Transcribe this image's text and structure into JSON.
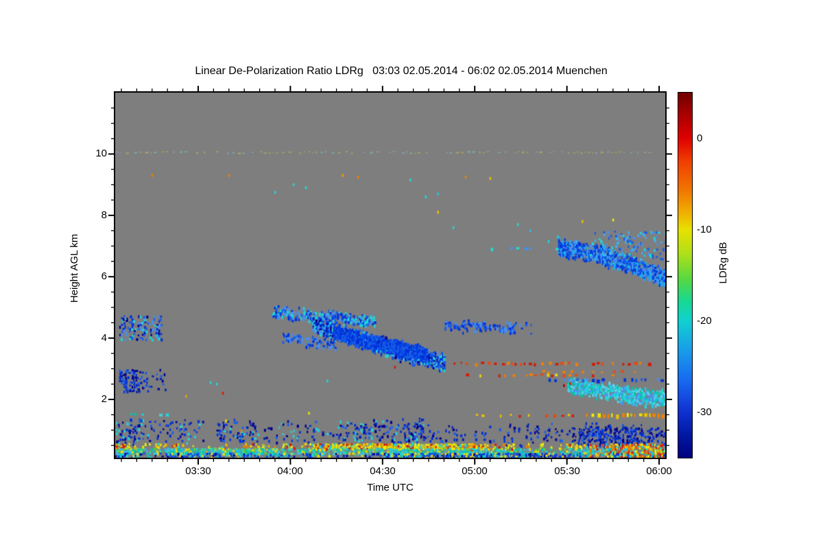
{
  "title": "Linear De-Polarization Ratio LDRg   03:03 02.05.2014 - 06:02 02.05.2014 Muenchen",
  "station": "Muenchen",
  "date": "02.05.2014",
  "time_start": "03:03",
  "time_end": "06:02",
  "chart_data": {
    "type": "heatmap",
    "title": "Linear De-Polarization Ratio LDRg   03:03 02.05.2014 - 06:02 02.05.2014 Muenchen",
    "xlabel": "Time UTC",
    "ylabel": "Height AGL km",
    "x_ticks": [
      "03:30",
      "04:00",
      "04:30",
      "05:00",
      "05:30",
      "06:00"
    ],
    "x_minor_step_min": 5,
    "x_range": [
      "03:03",
      "06:02"
    ],
    "y_ticks": [
      "10",
      "8",
      "6",
      "4",
      "2"
    ],
    "y_minor_step_km": 0.5,
    "y_range_km": [
      0.1,
      12.0
    ],
    "no_data_color": "#7e7e7e",
    "grid": false,
    "colorbar": {
      "label": "LDRg dB",
      "ticks": [
        "0",
        "-10",
        "-20",
        "-30"
      ],
      "range_db": [
        5,
        -35
      ],
      "colormap": "rainbow",
      "gradient": [
        [
          "#700000",
          0
        ],
        [
          "#a00000",
          5
        ],
        [
          "#e00000",
          12.5
        ],
        [
          "#f04000",
          19
        ],
        [
          "#f07800",
          27
        ],
        [
          "#f0b000",
          33
        ],
        [
          "#e8e000",
          37.5
        ],
        [
          "#b0e018",
          44
        ],
        [
          "#58d840",
          51
        ],
        [
          "#18d890",
          57
        ],
        [
          "#10d0d0",
          62.5
        ],
        [
          "#18a0e8",
          70
        ],
        [
          "#1868f0",
          79
        ],
        [
          "#1030d0",
          87.5
        ],
        [
          "#0018a0",
          94
        ],
        [
          "#000080",
          100
        ]
      ]
    },
    "features": [
      {
        "name": "cloud-left-4km",
        "kind": "region",
        "t": [
          "03:04",
          "03:18"
        ],
        "h": [
          3.95,
          4.75
        ],
        "density": 0.38,
        "palette": [
          "#0030d8",
          "#1a5ce8",
          "#000090",
          "#4890f0",
          "#20d8d8"
        ]
      },
      {
        "name": "cloud-left-3km",
        "kind": "region",
        "t": [
          "03:04",
          "03:19"
        ],
        "h": [
          2.3,
          3.0
        ],
        "density": 0.5,
        "palette": [
          "#0030d8",
          "#000090",
          "#0020b0",
          "#1a5ce8"
        ]
      },
      {
        "name": "cyan-dashes-1.5km-left",
        "kind": "dashes",
        "t": [
          "03:04",
          "03:21"
        ],
        "h": 1.52,
        "density": 0.3,
        "thickness_km": 0.08,
        "palette": [
          "#20d8d8",
          "#00c8a8",
          "#40d0e0"
        ]
      },
      {
        "name": "mid-cloud-upper-streak",
        "kind": "band",
        "path": [
          [
            "03:54",
            4.85
          ],
          [
            "04:12",
            4.72
          ],
          [
            "04:27",
            4.55
          ]
        ],
        "thickness_km": 0.2,
        "density": 0.55,
        "palette": [
          "#1a5ce8",
          "#0030d8",
          "#4890f0",
          "#20d8d8"
        ]
      },
      {
        "name": "mid-cloud-small-streak",
        "kind": "band",
        "path": [
          [
            "03:57",
            4.05
          ],
          [
            "04:15",
            3.78
          ]
        ],
        "thickness_km": 0.15,
        "density": 0.4,
        "palette": [
          "#1a5ce8",
          "#0030d8",
          "#4890f0"
        ]
      },
      {
        "name": "mid-cloud-main",
        "kind": "band",
        "path": [
          [
            "04:07",
            4.45
          ],
          [
            "04:20",
            4.05
          ],
          [
            "04:35",
            3.6
          ],
          [
            "04:50",
            3.25
          ]
        ],
        "thickness_km": 0.4,
        "density": 0.85,
        "palette": [
          "#0030d8",
          "#1a5ce8",
          "#0048e8",
          "#000090",
          "#4890f0",
          "#20d8d8"
        ]
      },
      {
        "name": "mid-cloud-core",
        "kind": "band",
        "path": [
          [
            "04:14",
            4.2
          ],
          [
            "04:28",
            3.85
          ],
          [
            "04:44",
            3.5
          ]
        ],
        "thickness_km": 0.3,
        "density": 0.9,
        "palette": [
          "#0030d8",
          "#0048e8",
          "#1a5ce8"
        ]
      },
      {
        "name": "streak-4.4km",
        "kind": "band",
        "path": [
          [
            "04:50",
            4.45
          ],
          [
            "05:02",
            4.38
          ],
          [
            "05:13",
            4.3
          ]
        ],
        "thickness_km": 0.16,
        "density": 0.45,
        "palette": [
          "#1a5ce8",
          "#0030d8",
          "#4890f0"
        ]
      },
      {
        "name": "blob-4.3km",
        "kind": "region",
        "t": [
          "05:09",
          "05:20"
        ],
        "h": [
          4.15,
          4.55
        ],
        "density": 0.55,
        "palette": [
          "#1a5ce8",
          "#0030d8",
          "#4890f0"
        ]
      },
      {
        "name": "right-cloud-band",
        "kind": "band",
        "path": [
          [
            "05:27",
            7.0
          ],
          [
            "05:40",
            6.75
          ],
          [
            "05:52",
            6.35
          ],
          [
            "06:02",
            5.95
          ]
        ],
        "thickness_km": 0.42,
        "density": 0.78,
        "palette": [
          "#1a5ce8",
          "#0030d8",
          "#4890f0",
          "#0048e8",
          "#20b0f0"
        ]
      },
      {
        "name": "right-cloud-halo",
        "kind": "region",
        "t": [
          "05:36",
          "06:02"
        ],
        "h": [
          6.6,
          7.5
        ],
        "density": 0.15,
        "palette": [
          "#20d8d8",
          "#4890f0",
          "#1a5ce8",
          "#40b0f0"
        ]
      },
      {
        "name": "cloud-trail-7km",
        "kind": "dashes",
        "t": [
          "05:03",
          "05:30"
        ],
        "h": 6.9,
        "density": 0.1,
        "thickness_km": 0.1,
        "palette": [
          "#20d8d8",
          "#4890f0"
        ]
      },
      {
        "name": "cyan-blob-right",
        "kind": "band",
        "path": [
          [
            "05:30",
            2.45
          ],
          [
            "05:42",
            2.3
          ],
          [
            "05:52",
            2.1
          ],
          [
            "06:02",
            2.05
          ]
        ],
        "thickness_km": 0.36,
        "density": 0.7,
        "palette": [
          "#20d8d8",
          "#30c0f0",
          "#4890f0",
          "#00c8a8",
          "#60d8f0",
          "#20d8d8"
        ]
      },
      {
        "name": "blue-dashes-2.6km",
        "kind": "dashes",
        "t": [
          "05:24",
          "06:02"
        ],
        "h": 2.62,
        "density": 0.4,
        "thickness_km": 0.1,
        "palette": [
          "#1a5ce8",
          "#0030d8",
          "#4890f0"
        ]
      },
      {
        "name": "red-dash-line-3.15km",
        "kind": "dashes",
        "t": [
          "04:52",
          "05:58"
        ],
        "h": 3.16,
        "density": 0.45,
        "thickness_km": 0.09,
        "palette": [
          "#d81800",
          "#e84810",
          "#f08000",
          "#d81800"
        ]
      },
      {
        "name": "orange-dash-line-2.8km",
        "kind": "dashes",
        "t": [
          "04:56",
          "05:45"
        ],
        "h": 2.78,
        "density": 0.22,
        "thickness_km": 0.08,
        "palette": [
          "#e84810",
          "#f08000",
          "#f0e000",
          "#d81800"
        ]
      },
      {
        "name": "orange-dots-2.9km",
        "kind": "dashes",
        "t": [
          "05:22",
          "05:52"
        ],
        "h": 2.9,
        "density": 0.18,
        "thickness_km": 0.07,
        "palette": [
          "#f08000",
          "#e84810"
        ]
      },
      {
        "name": "orange-dash-line-1.5km",
        "kind": "dashes",
        "t": [
          "04:57",
          "05:37"
        ],
        "h": 1.47,
        "density": 0.28,
        "thickness_km": 0.08,
        "palette": [
          "#e84810",
          "#f08000",
          "#d81800",
          "#f0c000"
        ]
      },
      {
        "name": "yellow-line-1.5km",
        "kind": "dashes",
        "t": [
          "05:38",
          "06:02"
        ],
        "h": 1.47,
        "density": 0.85,
        "thickness_km": 0.12,
        "palette": [
          "#f0f000",
          "#f0e000",
          "#f0c000",
          "#f08000"
        ]
      },
      {
        "name": "faint-line-10km",
        "kind": "dashes",
        "t": [
          "03:03",
          "06:02"
        ],
        "h": 10.05,
        "density": 0.45,
        "thickness_km": 0.05,
        "opacity": 0.5,
        "palette": [
          "#b0b058",
          "#80c0c0",
          "#c0c060"
        ]
      },
      {
        "name": "aerosol-band-left",
        "kind": "region",
        "t": [
          "03:03",
          "04:43"
        ],
        "h": [
          0.65,
          1.3
        ],
        "density": 0.4,
        "wobble": 0.12,
        "palette": [
          "#000090",
          "#0020b0",
          "#0030d8",
          "#0030d8",
          "#000090",
          "#1a5ce8",
          "#20d8d8"
        ]
      },
      {
        "name": "aerosol-band-mid",
        "kind": "region",
        "t": [
          "04:43",
          "05:33"
        ],
        "h": [
          0.6,
          1.15
        ],
        "density": 0.17,
        "wobble": 0.12,
        "palette": [
          "#000090",
          "#0020b0",
          "#0030d8",
          "#1a5ce8"
        ]
      },
      {
        "name": "aerosol-band-right",
        "kind": "region",
        "t": [
          "05:33",
          "06:02"
        ],
        "h": [
          0.55,
          1.15
        ],
        "density": 0.42,
        "wobble": 0.12,
        "palette": [
          "#000090",
          "#0020b0",
          "#0030d8",
          "#0030d8",
          "#1a5ce8"
        ]
      },
      {
        "name": "surface-yellow-band",
        "kind": "region",
        "t": [
          "03:03",
          "06:02"
        ],
        "h": [
          0.42,
          0.58
        ],
        "density": 0.75,
        "palette": [
          "#f0f000",
          "#f0e000",
          "#f0c000",
          "#b8e020",
          "#f08000",
          "#20d8d8",
          "#f0f000",
          "#d81800"
        ]
      },
      {
        "name": "surface-cyan-band",
        "kind": "region",
        "t": [
          "03:03",
          "06:02"
        ],
        "h": [
          0.27,
          0.42
        ],
        "density": 0.75,
        "palette": [
          "#20d8d8",
          "#00c8c8",
          "#40b0f0",
          "#58d838",
          "#f0e000",
          "#20d8d8",
          "#00c8a8"
        ]
      },
      {
        "name": "surface-blue-band",
        "kind": "region",
        "t": [
          "03:03",
          "06:02"
        ],
        "h": [
          0.1,
          0.27
        ],
        "density": 0.8,
        "palette": [
          "#1040e0",
          "#000090",
          "#20d8d8",
          "#0030d8",
          "#00c8c8",
          "#0048e8",
          "#f0e000"
        ]
      },
      {
        "name": "surface-bright-right",
        "kind": "region",
        "t": [
          "05:36",
          "06:02"
        ],
        "h": [
          0.12,
          0.58
        ],
        "density": 0.45,
        "palette": [
          "#f0f000",
          "#f0c000",
          "#e84810",
          "#20d8d8",
          "#d81800",
          "#f08000"
        ]
      }
    ],
    "speckle_points": [
      [
        "03:15",
        9.3,
        "#f08000"
      ],
      [
        "03:40",
        9.3,
        "#f08000"
      ],
      [
        "04:17",
        9.3,
        "#f0a000"
      ],
      [
        "04:22",
        9.25,
        "#f08000"
      ],
      [
        "04:57",
        9.25,
        "#f08000"
      ],
      [
        "05:05",
        9.2,
        "#f0c000"
      ],
      [
        "04:01",
        9.0,
        "#20d8d8"
      ],
      [
        "04:05",
        8.9,
        "#20d8d8"
      ],
      [
        "03:55",
        8.75,
        "#20d8d8"
      ],
      [
        "04:39",
        9.15,
        "#20d8d8"
      ],
      [
        "04:44",
        8.6,
        "#20d8d8"
      ],
      [
        "04:48",
        8.7,
        "#30c0e0"
      ],
      [
        "04:48",
        8.1,
        "#f0c000"
      ],
      [
        "04:53",
        7.6,
        "#20d8d8"
      ],
      [
        "05:14",
        7.7,
        "#20d8d8"
      ],
      [
        "05:18",
        7.5,
        "#40b0f0"
      ],
      [
        "05:24",
        7.15,
        "#20d8d8"
      ],
      [
        "05:27",
        7.3,
        "#20d8d8"
      ],
      [
        "05:33",
        7.15,
        "#40b0f0"
      ],
      [
        "05:35",
        7.8,
        "#f0c000"
      ],
      [
        "05:45",
        7.85,
        "#f0f000"
      ],
      [
        "03:38",
        2.2,
        "#d81800"
      ],
      [
        "03:39",
        1.3,
        "#f0e000"
      ],
      [
        "03:44",
        0.97,
        "#f08000"
      ],
      [
        "03:36",
        2.5,
        "#20d8d8"
      ],
      [
        "03:34",
        2.55,
        "#20d8d8"
      ],
      [
        "04:12",
        2.6,
        "#20d8d8"
      ],
      [
        "04:06",
        1.55,
        "#f0e000"
      ],
      [
        "04:34",
        3.05,
        "#d81800"
      ],
      [
        "05:29",
        2.45,
        "#b00000"
      ],
      [
        "05:31",
        2.52,
        "#d81800"
      ],
      [
        "03:26",
        2.1,
        "#f0a000"
      ]
    ]
  }
}
